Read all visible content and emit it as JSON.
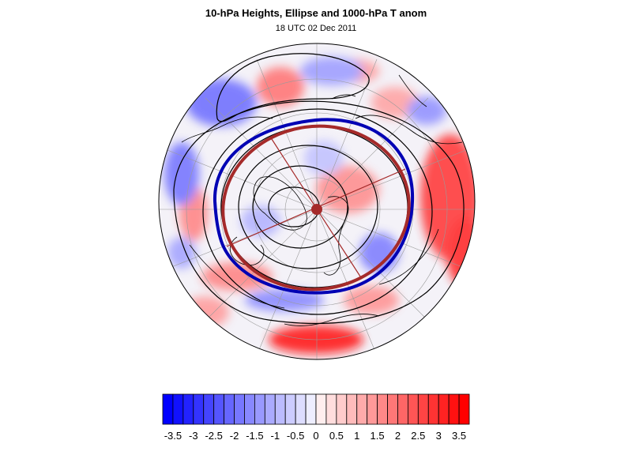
{
  "header": {
    "title": "10-hPa Heights, Ellipse and 1000-hPa T anom",
    "subtitle": "18 UTC 02 Dec 2011"
  },
  "colors": {
    "negative": "#0000ff",
    "neutral": "#ffffff",
    "positive": "#ff0000",
    "ellipse_observed": "#0000b4",
    "ellipse_fit": "#a52a2a",
    "contour": "#000000"
  },
  "map_data": {
    "projection": "north-polar-stereographic",
    "contour_variable": "10-hPa Heights",
    "shading_variable": "1000-hPa T anom",
    "ellipse_center_marker": true
  },
  "colorbar": {
    "levels": [
      -3.5,
      -3.25,
      -3,
      -2.75,
      -2.5,
      -2.25,
      -2,
      -1.75,
      -1.5,
      -1.25,
      -1,
      -0.75,
      -0.5,
      -0.25,
      0,
      0.25,
      0.5,
      0.75,
      1,
      1.25,
      1.5,
      1.75,
      2,
      2.25,
      2.5,
      2.75,
      3,
      3.25,
      3.5
    ],
    "labels": [
      "-3.5",
      "-3",
      "-2.5",
      "-2",
      "-1.5",
      "-1",
      "-0.5",
      "0",
      "0.5",
      "1",
      "1.5",
      "2",
      "2.5",
      "3",
      "3.5"
    ]
  }
}
